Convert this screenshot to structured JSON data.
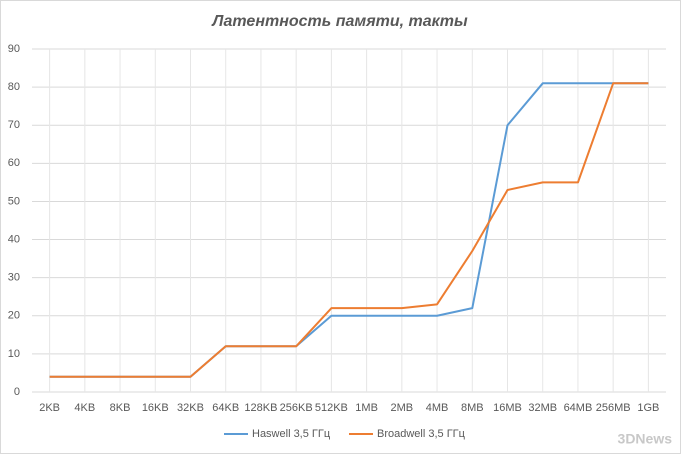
{
  "chart_data": {
    "type": "line",
    "title": "Латентность  памяти, такты",
    "categories": [
      "2KB",
      "4KB",
      "8KB",
      "16KB",
      "32KB",
      "64KB",
      "128KB",
      "256KB",
      "512KB",
      "1MB",
      "2MB",
      "4MB",
      "8MB",
      "16MB",
      "32MB",
      "64MB",
      "256MB",
      "1GB"
    ],
    "series": [
      {
        "name": "Haswell 3,5 ГГц",
        "color": "#5b9bd5",
        "values": [
          4,
          4,
          4,
          4,
          4,
          12,
          12,
          12,
          20,
          20,
          20,
          20,
          22,
          70,
          81,
          81,
          81,
          81
        ]
      },
      {
        "name": "Broadwell 3,5 ГГц",
        "color": "#ed7d31",
        "values": [
          4,
          4,
          4,
          4,
          4,
          12,
          12,
          12,
          22,
          22,
          22,
          23,
          37,
          53,
          55,
          55,
          81,
          81
        ]
      }
    ],
    "ylim": [
      0,
      90
    ],
    "yticks": [
      0,
      10,
      20,
      30,
      40,
      50,
      60,
      70,
      80,
      90
    ],
    "grid": true,
    "legend": "bottom",
    "watermark": "3DNews"
  }
}
